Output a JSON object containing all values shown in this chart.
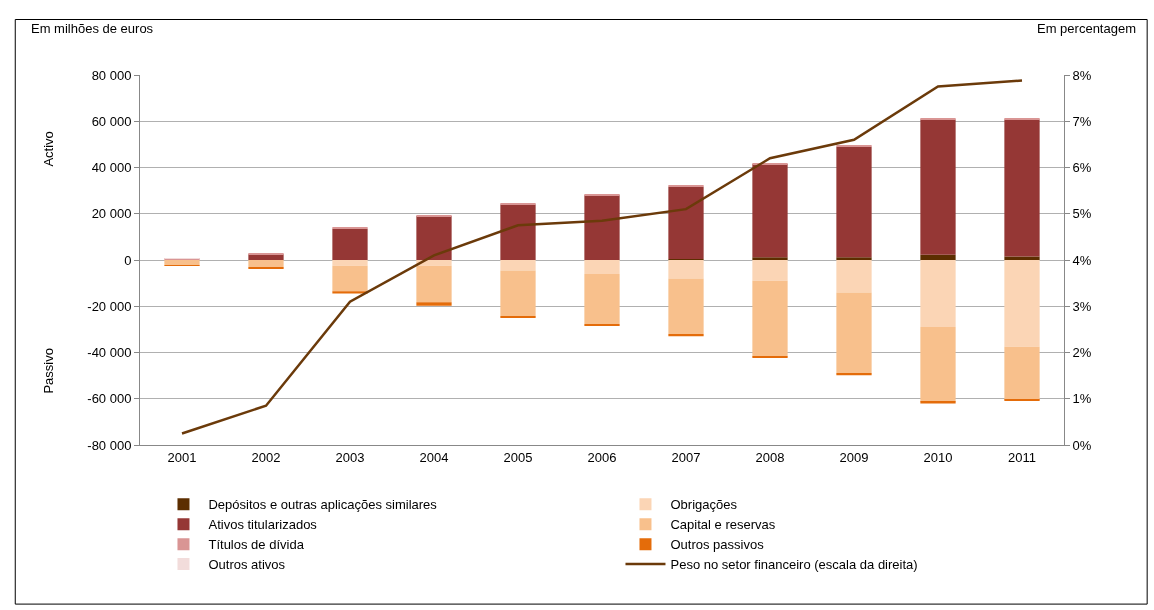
{
  "chart_data": {
    "type": "bar",
    "stacked": true,
    "ylabel": "Em milhões de euros",
    "y2label": "Em percentagem",
    "annotations": [
      "Activo",
      "Passivo"
    ],
    "categories": [
      "2001",
      "2002",
      "2003",
      "2004",
      "2005",
      "2006",
      "2007",
      "2008",
      "2009",
      "2010",
      "2011"
    ],
    "series": [
      {
        "name": "Depósitos e outras aplicações similares",
        "color": "#5c2e00",
        "values": [
          0,
          0,
          0,
          0,
          0,
          0,
          400,
          1200,
          1200,
          2300,
          1500
        ]
      },
      {
        "name": "Ativos titularizados",
        "color": "#953735",
        "values": [
          0,
          2500,
          13500,
          19000,
          24000,
          28000,
          31300,
          40300,
          47800,
          58500,
          59300
        ]
      },
      {
        "name": "Títulos de dívida",
        "color": "#d99594",
        "values": [
          500,
          500,
          700,
          500,
          600,
          500,
          500,
          500,
          500,
          500,
          500
        ]
      },
      {
        "name": "Outros ativos",
        "color": "#f2dcdb",
        "values": [
          300,
          null,
          null,
          null,
          null,
          null,
          null,
          null,
          null,
          null,
          null
        ]
      },
      {
        "name": "Obrigações",
        "color": "#fbd5b5",
        "values": [
          0,
          null,
          -2500,
          -2500,
          -4500,
          -6000,
          -8000,
          -9000,
          -14000,
          -29000,
          -37500
        ]
      },
      {
        "name": "Capital e reservas",
        "color": "#f8c08c",
        "values": [
          -2300,
          -3100,
          -11000,
          -15800,
          -19800,
          -21700,
          -24000,
          -32700,
          -35000,
          -32300,
          -23000
        ]
      },
      {
        "name": "Outros passivos",
        "color": "#e46c0a",
        "values": [
          -200,
          -800,
          -1000,
          -1500,
          -700,
          -800,
          -1000,
          -700,
          -800,
          -700,
          -300
        ]
      },
      {
        "name": "Peso no setor financeiro (escala da direita)",
        "color": "#6b3a0a",
        "type": "line",
        "axis": "y2",
        "values": [
          0.25,
          0.85,
          3.1,
          4.1,
          4.75,
          4.85,
          5.1,
          6.2,
          6.6,
          7.75,
          7.88
        ]
      }
    ],
    "ylim": [
      -80000,
      80000
    ],
    "yticks": [
      {
        "value": -80000,
        "label": "-80 000"
      },
      {
        "value": -60000,
        "label": "-60 000"
      },
      {
        "value": -40000,
        "label": "-40 000"
      },
      {
        "value": -20000,
        "label": "-20 000"
      },
      {
        "value": 0,
        "label": "0"
      },
      {
        "value": 20000,
        "label": "20 000"
      },
      {
        "value": 40000,
        "label": "40 000"
      },
      {
        "value": 60000,
        "label": "60 000"
      },
      {
        "value": 80000,
        "label": "80 000"
      }
    ],
    "y2lim": [
      0,
      8
    ],
    "y2ticks": [
      {
        "value": 0,
        "label": "0%"
      },
      {
        "value": 1,
        "label": "1%"
      },
      {
        "value": 2,
        "label": "2%"
      },
      {
        "value": 3,
        "label": "3%"
      },
      {
        "value": 4,
        "label": "4%"
      },
      {
        "value": 5,
        "label": "5%"
      },
      {
        "value": 6,
        "label": "6%"
      },
      {
        "value": 7,
        "label": "7%"
      },
      {
        "value": 8,
        "label": "8%"
      }
    ],
    "grid": "y",
    "legend": "bottom",
    "line_style": "solid",
    "marker": "none"
  }
}
